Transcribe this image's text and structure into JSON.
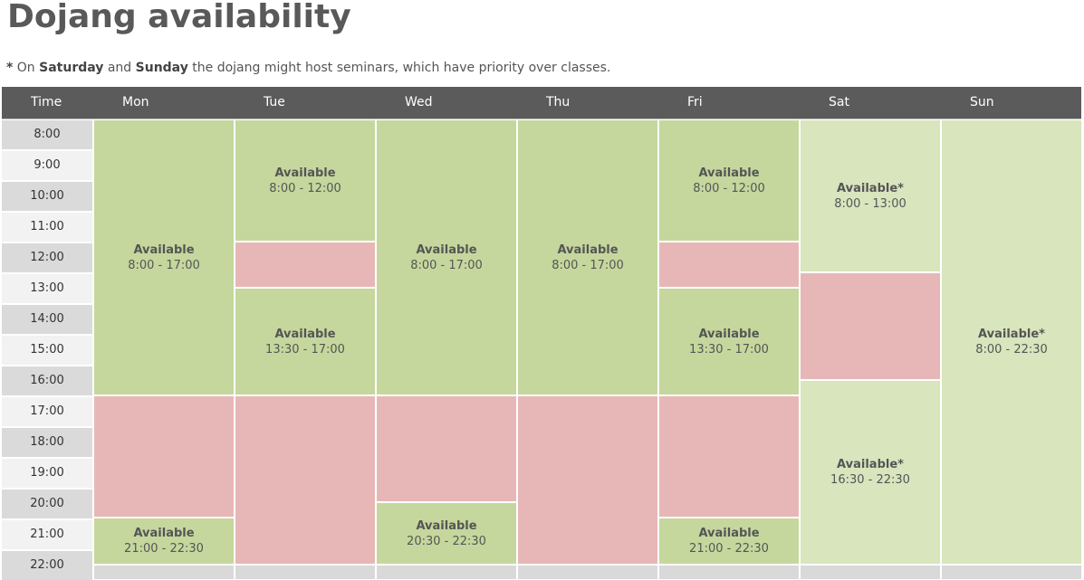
{
  "title": "Dojang availability",
  "note": {
    "star": "*",
    "t1": " On ",
    "b1": "Saturday",
    "t2": " and ",
    "b2": "Sunday",
    "t3": " the dojang might host seminars, which have priority over classes."
  },
  "header": {
    "time": "Time",
    "days": [
      "Mon",
      "Tue",
      "Wed",
      "Thu",
      "Fri",
      "Sat",
      "Sun"
    ]
  },
  "times": [
    "8:00",
    "9:00",
    "10:00",
    "11:00",
    "12:00",
    "13:00",
    "14:00",
    "15:00",
    "16:00",
    "17:00",
    "18:00",
    "19:00",
    "20:00",
    "21:00",
    "22:00"
  ],
  "schedule": {
    "mon": [
      {
        "status": "available",
        "label": "Available",
        "range": "8:00 - 17:00"
      },
      {
        "status": "busy"
      },
      {
        "status": "available",
        "label": "Available",
        "range": "21:00 - 22:30"
      }
    ],
    "tue": [
      {
        "status": "available",
        "label": "Available",
        "range": "8:00 - 12:00"
      },
      {
        "status": "busy"
      },
      {
        "status": "available",
        "label": "Available",
        "range": "13:30 - 17:00"
      },
      {
        "status": "busy"
      }
    ],
    "wed": [
      {
        "status": "available",
        "label": "Available",
        "range": "8:00 - 17:00"
      },
      {
        "status": "busy"
      },
      {
        "status": "available",
        "label": "Available",
        "range": "20:30 - 22:30"
      }
    ],
    "thu": [
      {
        "status": "available",
        "label": "Available",
        "range": "8:00 - 17:00"
      },
      {
        "status": "busy"
      }
    ],
    "fri": [
      {
        "status": "available",
        "label": "Available",
        "range": "8:00 - 12:00"
      },
      {
        "status": "busy"
      },
      {
        "status": "available",
        "label": "Available",
        "range": "13:30 - 17:00"
      },
      {
        "status": "busy"
      },
      {
        "status": "available",
        "label": "Available",
        "range": "21:00 - 22:30"
      }
    ],
    "sat": [
      {
        "status": "available-seminar",
        "label": "Available*",
        "range": "8:00 - 13:00"
      },
      {
        "status": "busy"
      },
      {
        "status": "available-seminar",
        "label": "Available*",
        "range": "16:30 - 22:30"
      }
    ],
    "sun": [
      {
        "status": "available-seminar",
        "label": "Available*",
        "range": "8:00 - 22:30"
      }
    ]
  },
  "colors": {
    "header": "#5b5b5b",
    "available": "#c5d79d",
    "available_seminar": "#d8e5bd",
    "busy": "#e7b7b7"
  }
}
